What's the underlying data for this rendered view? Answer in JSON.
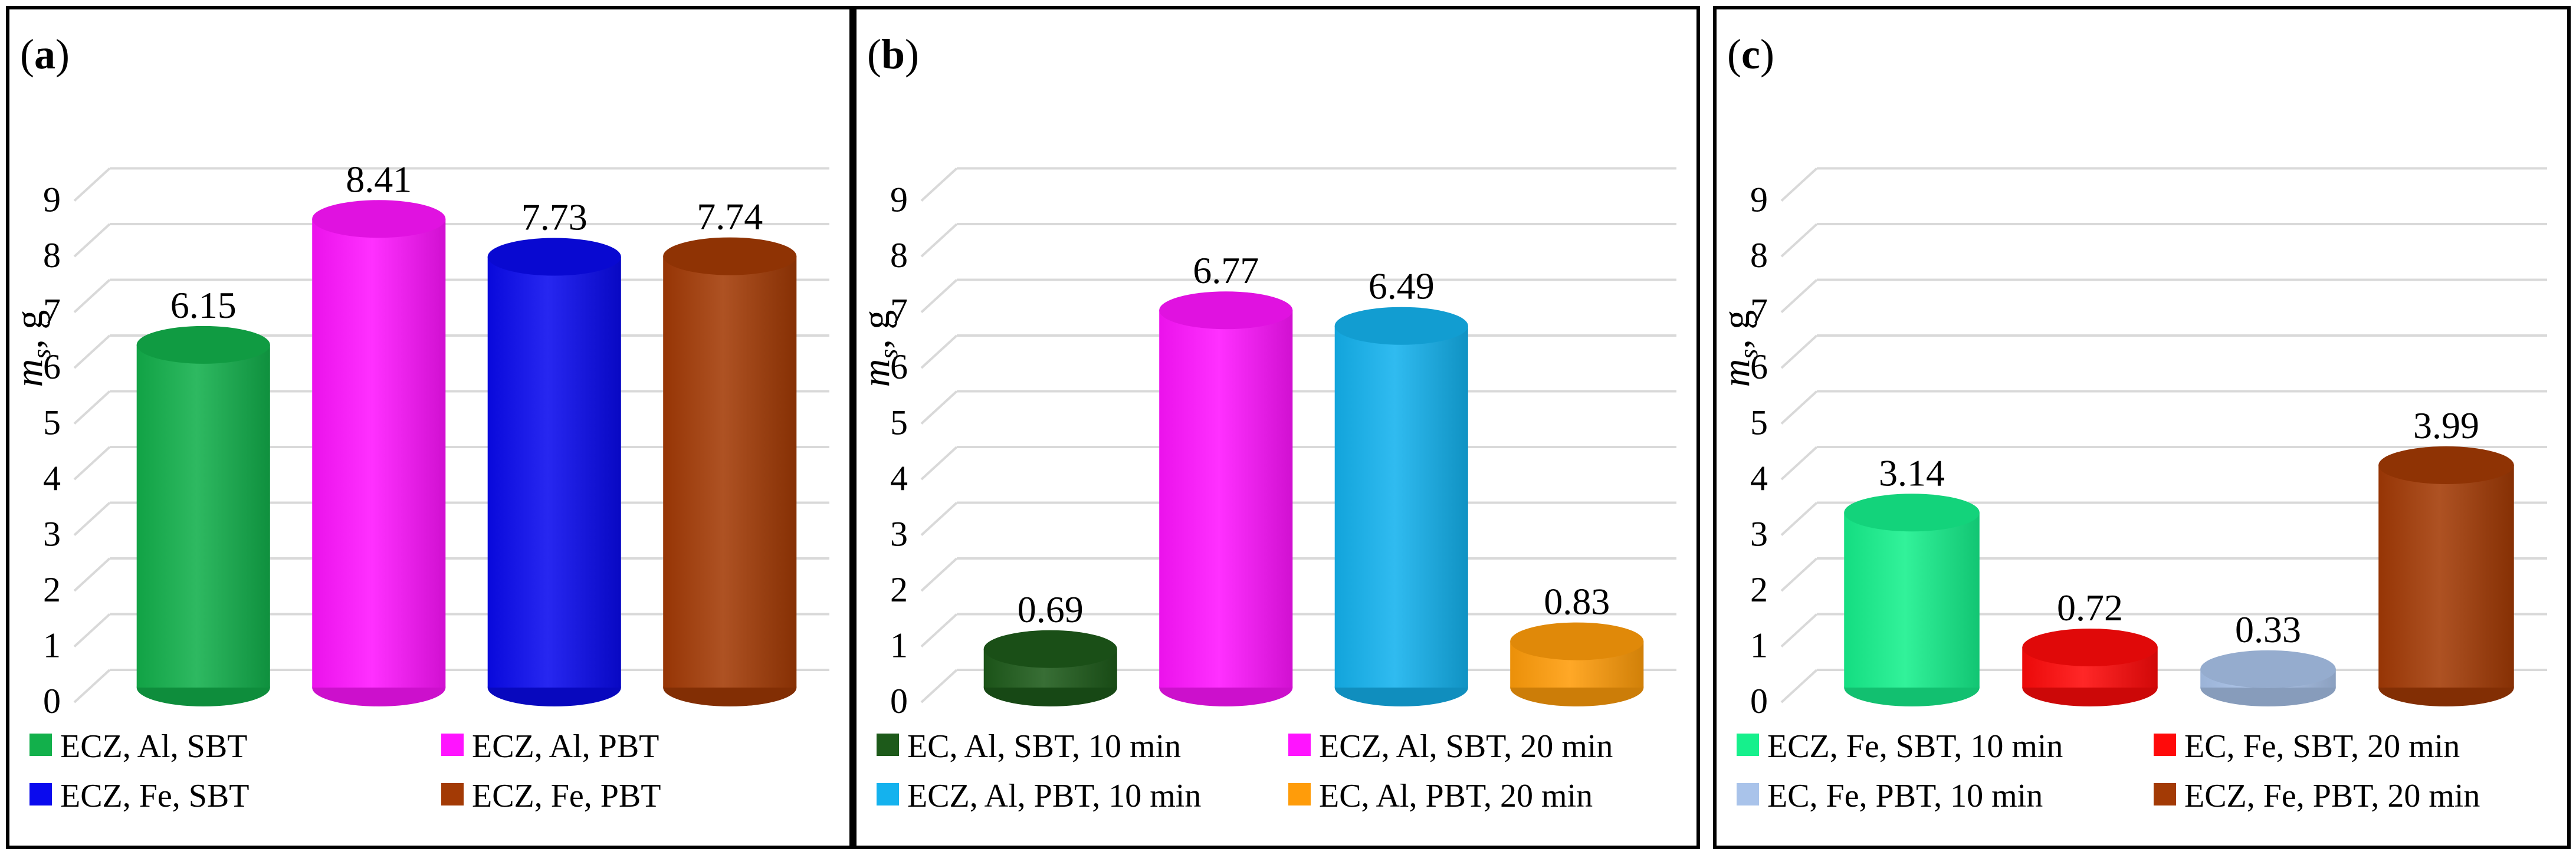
{
  "chart_data": [
    {
      "type": "bar",
      "panel_label": "a",
      "ylabel": "m",
      "ylabel_sub": "s",
      "ylabel_unit": ", g",
      "ylim": [
        0,
        9
      ],
      "yticks": [
        "0",
        "1",
        "2",
        "3",
        "4",
        "5",
        "6",
        "7",
        "8",
        "9"
      ],
      "grid": true,
      "legend_position": "bottom",
      "series": [
        {
          "name": "ECZ, Al, SBT",
          "value": 6.15,
          "label": "6.15",
          "color": "#12b04b"
        },
        {
          "name": "ECZ, Al, PBT",
          "value": 8.41,
          "label": "8.41",
          "color": "#ff14ff"
        },
        {
          "name": "ECZ, Fe, SBT",
          "value": 7.73,
          "label": "7.73",
          "color": "#0a0aee"
        },
        {
          "name": "ECZ, Fe, PBT",
          "value": 7.74,
          "label": "7.74",
          "color": "#a33a05"
        }
      ]
    },
    {
      "type": "bar",
      "panel_label": "b",
      "ylabel": "m",
      "ylabel_sub": "s",
      "ylabel_unit": ", g",
      "ylim": [
        0,
        9
      ],
      "yticks": [
        "0",
        "1",
        "2",
        "3",
        "4",
        "5",
        "6",
        "7",
        "8",
        "9"
      ],
      "grid": true,
      "legend_position": "bottom",
      "series": [
        {
          "name": "EC, Al, SBT, 10 min",
          "value": 0.69,
          "label": "0.69",
          "color": "#1d5a1a"
        },
        {
          "name": "ECZ, Al, SBT, 20 min",
          "value": 6.77,
          "label": "6.77",
          "color": "#ff14ff"
        },
        {
          "name": "ECZ, Al, PBT, 10 min",
          "value": 6.49,
          "label": "6.49",
          "color": "#14b2ee"
        },
        {
          "name": "EC, Al, PBT, 20 min",
          "value": 0.83,
          "label": "0.83",
          "color": "#ff9c0a"
        }
      ]
    },
    {
      "type": "bar",
      "panel_label": "c",
      "ylabel": "m",
      "ylabel_sub": "s",
      "ylabel_unit": ", g",
      "ylim": [
        0,
        9
      ],
      "yticks": [
        "0",
        "1",
        "2",
        "3",
        "4",
        "5",
        "6",
        "7",
        "8",
        "9"
      ],
      "grid": true,
      "legend_position": "bottom",
      "series": [
        {
          "name": "ECZ, Fe, SBT, 10 min",
          "value": 3.14,
          "label": "3.14",
          "color": "#16f08c"
        },
        {
          "name": "EC, Fe, SBT, 20 min",
          "value": 0.72,
          "label": "0.72",
          "color": "#ff0a0a"
        },
        {
          "name": "EC, Fe, PBT, 10 min",
          "value": 0.33,
          "label": "0.33",
          "color": "#a9c3ea"
        },
        {
          "name": "ECZ, Fe, PBT, 20 min",
          "value": 3.99,
          "label": "3.99",
          "color": "#a33a05"
        }
      ]
    }
  ]
}
